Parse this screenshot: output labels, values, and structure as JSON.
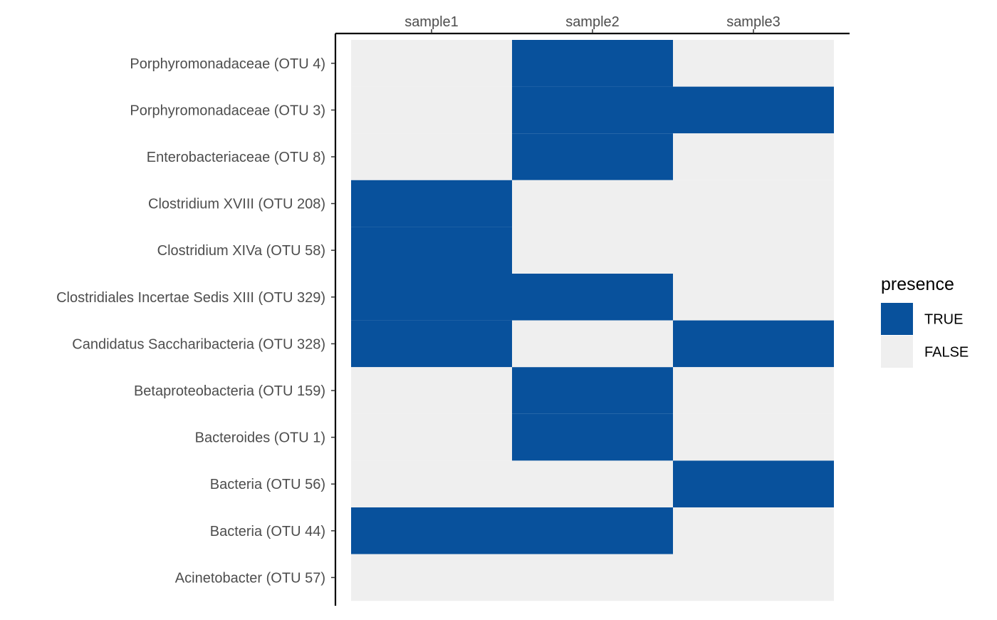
{
  "chart_data": {
    "type": "heatmap",
    "x_categories": [
      "sample1",
      "sample2",
      "sample3"
    ],
    "y_categories": [
      "Porphyromonadaceae (OTU 4)",
      "Porphyromonadaceae (OTU 3)",
      "Enterobacteriaceae (OTU 8)",
      "Clostridium XVIII (OTU 208)",
      "Clostridium XIVa (OTU 58)",
      "Clostridiales Incertae Sedis XIII (OTU 329)",
      "Candidatus Saccharibacteria (OTU 328)",
      "Betaproteobacteria (OTU 159)",
      "Bacteroides (OTU 1)",
      "Bacteria (OTU 56)",
      "Bacteria (OTU 44)",
      "Acinetobacter (OTU 57)"
    ],
    "values": [
      [
        false,
        true,
        false
      ],
      [
        false,
        true,
        true
      ],
      [
        false,
        true,
        false
      ],
      [
        true,
        false,
        false
      ],
      [
        true,
        false,
        false
      ],
      [
        true,
        true,
        false
      ],
      [
        true,
        false,
        true
      ],
      [
        false,
        true,
        false
      ],
      [
        false,
        true,
        false
      ],
      [
        false,
        false,
        true
      ],
      [
        true,
        true,
        false
      ],
      [
        false,
        false,
        false
      ]
    ],
    "x_axis_position": "top",
    "legend": {
      "title": "presence",
      "placement": "right",
      "entries": [
        {
          "label": "TRUE",
          "value": true,
          "color": "#08519c"
        },
        {
          "label": "FALSE",
          "value": false,
          "color": "#efefef"
        }
      ]
    },
    "colors": {
      "true": "#08519c",
      "false": "#efefef",
      "axis_line": "#000000",
      "tick_label": "#4d4d4d"
    },
    "grid": false
  }
}
